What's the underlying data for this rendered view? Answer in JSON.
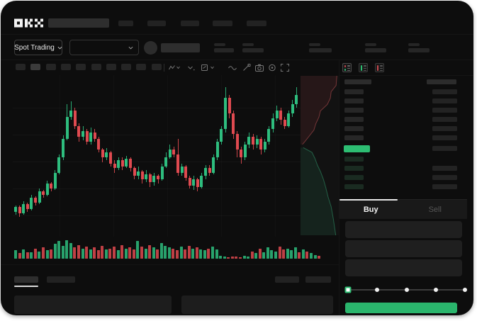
{
  "app": {
    "name": "OKX"
  },
  "colors": {
    "up": "#2ebd7e",
    "down": "#df4a50",
    "accent_green": "#2dbd72",
    "last_price_bar": "#2dbd72",
    "buy_button": "#2ab56c"
  },
  "header": {
    "logo_text": "OKX",
    "nav_placeholder_count": 5
  },
  "subheader": {
    "market_selector_label": "Spot Trading",
    "stat_placeholder_count": 5
  },
  "toolbar": {
    "interval_placeholder_count": 10,
    "icons": [
      "candle-style-icon",
      "interval-chevron-icon",
      "indicators-icon",
      "line-type-icon",
      "draw-icon",
      "camera-icon",
      "settings-icon",
      "expand-icon"
    ]
  },
  "order_book": {
    "view_icons": [
      "orderbook-split-view-icon",
      "orderbook-buy-view-icon",
      "orderbook-sell-view-icon"
    ],
    "ask_row_count": 6,
    "bid_row_count": 4,
    "bid_right_bars": [
      false,
      true,
      true,
      true
    ],
    "last_price_highlight": true
  },
  "trade_panel": {
    "tabs": [
      {
        "label": "Buy",
        "active": true
      },
      {
        "label": "Sell",
        "active": false
      }
    ],
    "form_field_count": 3,
    "slider": {
      "stops": 5,
      "active_index": 0
    }
  },
  "chart_data": [
    {
      "type": "candlestick",
      "title": "",
      "xlabel": "",
      "ylabel": "",
      "ylim": [
        0,
        100
      ],
      "grid": true,
      "candles": [
        [
          15,
          18,
          19,
          13
        ],
        [
          18,
          14,
          19,
          12
        ],
        [
          14,
          20,
          22,
          13
        ],
        [
          20,
          17,
          21,
          15
        ],
        [
          17,
          24,
          26,
          16
        ],
        [
          24,
          21,
          25,
          19
        ],
        [
          21,
          28,
          30,
          20
        ],
        [
          28,
          26,
          29,
          24
        ],
        [
          26,
          33,
          35,
          25
        ],
        [
          33,
          30,
          34,
          28
        ],
        [
          30,
          40,
          42,
          29
        ],
        [
          40,
          50,
          52,
          39
        ],
        [
          50,
          62,
          64,
          48
        ],
        [
          62,
          76,
          84,
          61
        ],
        [
          76,
          80,
          86,
          74
        ],
        [
          80,
          70,
          82,
          68
        ],
        [
          70,
          63,
          72,
          60
        ],
        [
          63,
          67,
          70,
          61
        ],
        [
          67,
          60,
          68,
          58
        ],
        [
          60,
          66,
          69,
          58
        ],
        [
          66,
          62,
          68,
          60
        ],
        [
          62,
          55,
          63,
          53
        ],
        [
          55,
          50,
          56,
          47
        ],
        [
          50,
          53,
          56,
          48
        ],
        [
          53,
          46,
          54,
          44
        ],
        [
          46,
          43,
          48,
          40
        ],
        [
          43,
          48,
          50,
          42
        ],
        [
          48,
          44,
          50,
          42
        ],
        [
          44,
          49,
          51,
          43
        ],
        [
          49,
          43,
          50,
          41
        ],
        [
          43,
          38,
          44,
          36
        ],
        [
          38,
          41,
          44,
          36
        ],
        [
          41,
          36,
          42,
          33
        ],
        [
          36,
          39,
          42,
          34
        ],
        [
          39,
          34,
          40,
          31
        ],
        [
          34,
          38,
          40,
          32
        ],
        [
          38,
          36,
          39,
          33
        ],
        [
          36,
          44,
          46,
          35
        ],
        [
          44,
          50,
          53,
          43
        ],
        [
          50,
          55,
          58,
          49
        ],
        [
          55,
          52,
          57,
          50
        ],
        [
          52,
          40,
          62,
          38
        ],
        [
          40,
          44,
          46,
          38
        ],
        [
          44,
          37,
          45,
          35
        ],
        [
          37,
          32,
          38,
          30
        ],
        [
          32,
          36,
          38,
          29
        ],
        [
          36,
          31,
          37,
          28
        ],
        [
          31,
          38,
          40,
          30
        ],
        [
          38,
          43,
          45,
          36
        ],
        [
          43,
          40,
          45,
          38
        ],
        [
          40,
          50,
          52,
          39
        ],
        [
          50,
          60,
          62,
          48
        ],
        [
          60,
          68,
          70,
          58
        ],
        [
          68,
          88,
          95,
          66
        ],
        [
          88,
          78,
          90,
          75
        ],
        [
          78,
          65,
          80,
          62
        ],
        [
          65,
          55,
          67,
          50
        ],
        [
          55,
          50,
          57,
          46
        ],
        [
          50,
          58,
          60,
          48
        ],
        [
          58,
          63,
          66,
          56
        ],
        [
          63,
          58,
          65,
          55
        ],
        [
          58,
          62,
          64,
          56
        ],
        [
          62,
          55,
          63,
          52
        ],
        [
          55,
          60,
          62,
          53
        ],
        [
          60,
          68,
          70,
          58
        ],
        [
          68,
          75,
          78,
          66
        ],
        [
          75,
          80,
          83,
          73
        ],
        [
          80,
          74,
          82,
          71
        ],
        [
          74,
          70,
          76,
          68
        ],
        [
          70,
          78,
          80,
          69
        ],
        [
          78,
          84,
          87,
          76
        ],
        [
          84,
          90,
          95,
          82
        ]
      ]
    },
    {
      "type": "bar",
      "title": "volume",
      "values": [
        45,
        30,
        50,
        35,
        35,
        55,
        40,
        60,
        45,
        50,
        80,
        95,
        70,
        100,
        85,
        60,
        75,
        55,
        65,
        50,
        60,
        45,
        70,
        50,
        55,
        65,
        45,
        75,
        55,
        60,
        50,
        95,
        65,
        55,
        75,
        60,
        50,
        85,
        70,
        60,
        55,
        45,
        65,
        50,
        70,
        55,
        60,
        50,
        45,
        55,
        65,
        50,
        15,
        10,
        8,
        12,
        10,
        8,
        14,
        10,
        40,
        30,
        55,
        35,
        60,
        45,
        40,
        65,
        50,
        55,
        45,
        60,
        35,
        50,
        40,
        30,
        20,
        15
      ],
      "dir_segments": [
        "ududududud",
        "uuuuu",
        "ddudu",
        "dddudd",
        "udud",
        "dududud",
        "uuudduddud",
        "uud",
        "uuuudddd",
        "uududu",
        "uuudduuu",
        "duduud"
      ]
    },
    {
      "type": "area",
      "title": "depth",
      "asks": [
        [
          0,
          0.95
        ],
        [
          0.06,
          0.93
        ],
        [
          0.1,
          0.8
        ],
        [
          0.14,
          0.78
        ],
        [
          0.18,
          0.7
        ],
        [
          0.22,
          0.52
        ],
        [
          0.26,
          0.48
        ],
        [
          0.3,
          0.4
        ],
        [
          0.34,
          0.35
        ],
        [
          0.38,
          0.22
        ],
        [
          0.41,
          0.12
        ],
        [
          0.43,
          0.05
        ]
      ],
      "bids": [
        [
          0.45,
          0.07
        ],
        [
          0.48,
          0.3
        ],
        [
          0.52,
          0.38
        ],
        [
          0.56,
          0.44
        ],
        [
          0.6,
          0.52
        ],
        [
          0.65,
          0.6
        ],
        [
          0.7,
          0.66
        ],
        [
          0.76,
          0.72
        ],
        [
          0.82,
          0.8
        ],
        [
          0.9,
          0.86
        ],
        [
          1.0,
          0.92
        ]
      ]
    }
  ]
}
